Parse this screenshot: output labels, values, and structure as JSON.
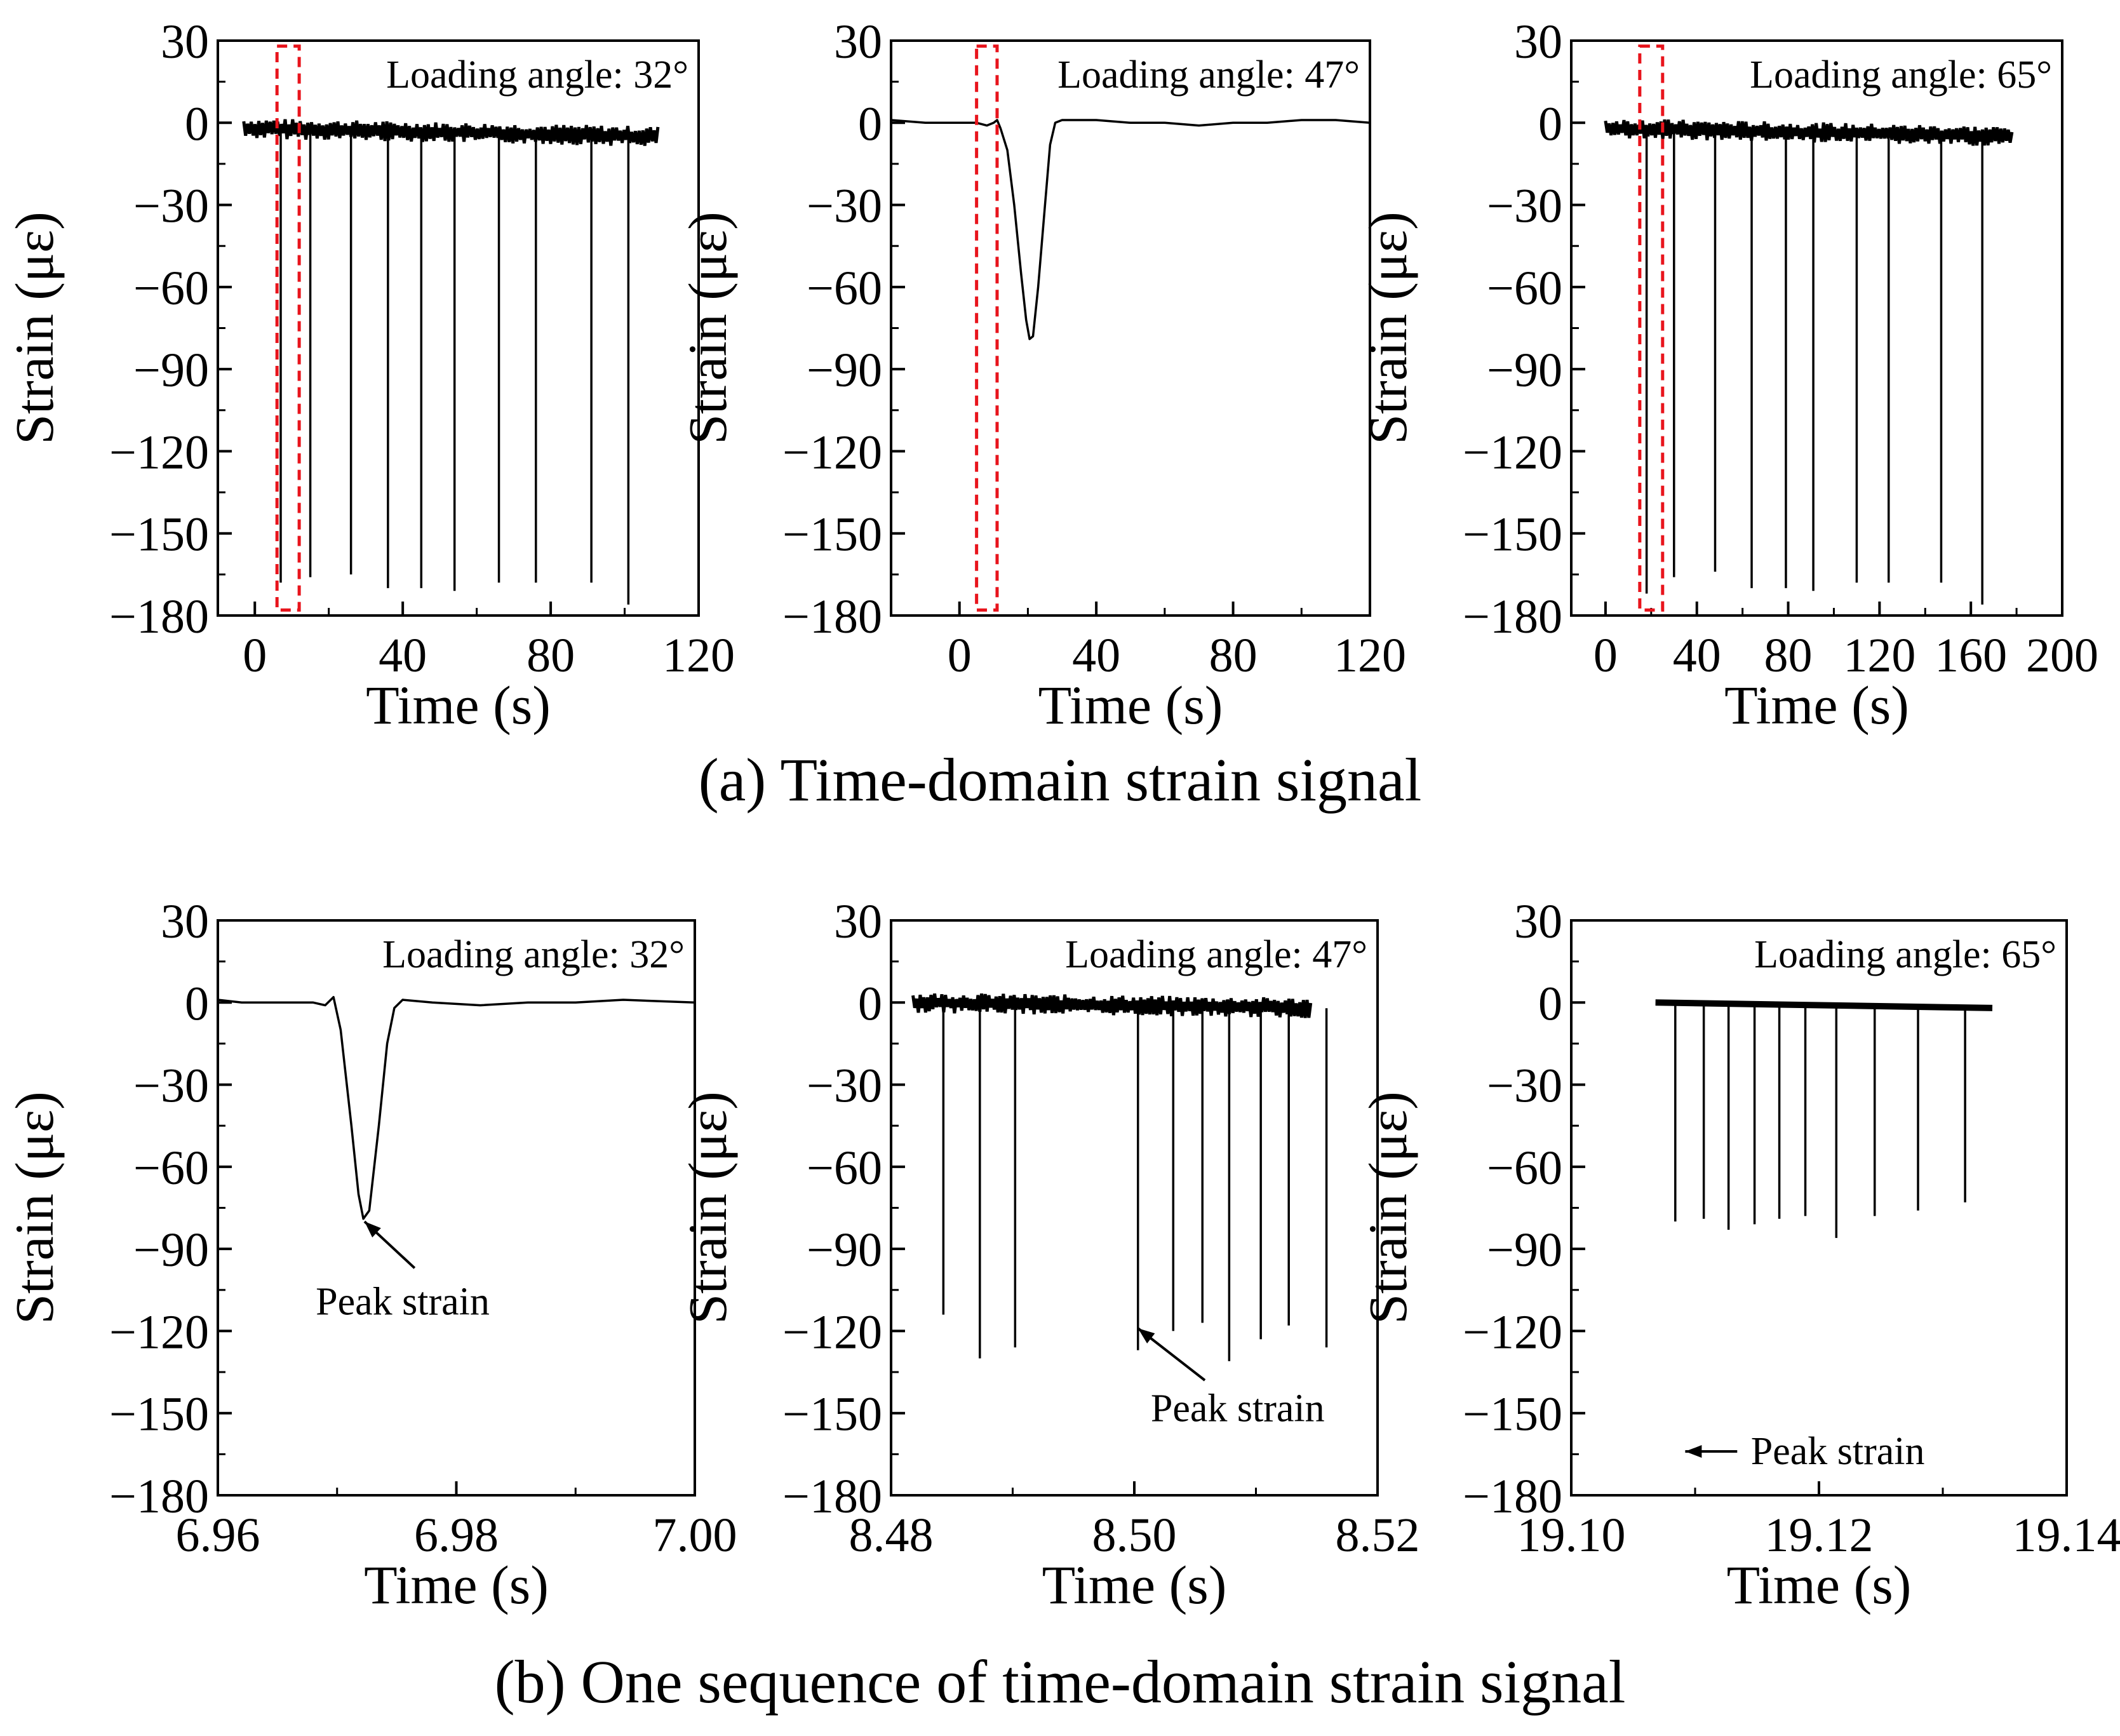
{
  "figure": {
    "caption_a": "(a) Time-domain strain signal",
    "caption_b": "(b) One sequence of time-domain strain signal"
  },
  "colors": {
    "ink": "#000000",
    "highlight": "#e8141c",
    "background": "#ffffff"
  },
  "chart_data": [
    {
      "id": "a1",
      "type": "line",
      "annotation": "Loading angle: 32°",
      "xlabel": "Time (s)",
      "ylabel": "Strain (με)",
      "xlim": [
        -10,
        120
      ],
      "ylim": [
        -180,
        30
      ],
      "xticks": [
        0,
        40,
        80,
        120
      ],
      "xtick_labels": [
        "0",
        "40",
        "80",
        "120"
      ],
      "yticks": [
        30,
        0,
        -30,
        -60,
        -90,
        -120,
        -150,
        -180
      ],
      "ytick_labels": [
        "30",
        "0",
        "−30",
        "−60",
        "−90",
        "−120",
        "−150",
        "−180"
      ],
      "style": "noisy-baseline-spikes",
      "baseline": {
        "x_start": -3,
        "x_end": 109,
        "y_start": -2,
        "y_end": -5
      },
      "spikes": [
        {
          "x": 7,
          "y": -168
        },
        {
          "x": 15,
          "y": -166
        },
        {
          "x": 26,
          "y": -165
        },
        {
          "x": 36,
          "y": -170
        },
        {
          "x": 45,
          "y": -170
        },
        {
          "x": 54,
          "y": -171
        },
        {
          "x": 66,
          "y": -168
        },
        {
          "x": 76,
          "y": -168
        },
        {
          "x": 91,
          "y": -168
        },
        {
          "x": 101,
          "y": -176
        }
      ],
      "highlight_box": {
        "x": [
          6,
          12
        ],
        "y": [
          -178,
          28
        ]
      }
    },
    {
      "id": "a2",
      "type": "line",
      "annotation": "Loading angle: 47°",
      "xlabel": "Time (s)",
      "ylabel": "Strain (με)",
      "xlim": [
        -20,
        120
      ],
      "ylim": [
        -180,
        30
      ],
      "xticks": [
        0,
        40,
        80,
        120
      ],
      "xtick_labels": [
        "0",
        "40",
        "80",
        "120"
      ],
      "yticks": [
        30,
        0,
        -30,
        -60,
        -90,
        -120,
        -150,
        -180
      ],
      "ytick_labels": [
        "30",
        "0",
        "−30",
        "−60",
        "−90",
        "−120",
        "−150",
        "−180"
      ],
      "style": "line",
      "series": [
        {
          "name": "strain",
          "points": [
            [
              -20,
              1
            ],
            [
              -10,
              0
            ],
            [
              0,
              0
            ],
            [
              5,
              0
            ],
            [
              8,
              -1
            ],
            [
              10,
              0
            ],
            [
              11,
              1
            ],
            [
              12,
              -2
            ],
            [
              14,
              -10
            ],
            [
              16,
              -30
            ],
            [
              18,
              -55
            ],
            [
              19.5,
              -72
            ],
            [
              20.5,
              -79
            ],
            [
              21.5,
              -78
            ],
            [
              23,
              -60
            ],
            [
              25,
              -30
            ],
            [
              26.5,
              -8
            ],
            [
              28,
              0
            ],
            [
              30,
              1
            ],
            [
              40,
              1
            ],
            [
              50,
              0
            ],
            [
              60,
              0
            ],
            [
              70,
              -1
            ],
            [
              80,
              0
            ],
            [
              90,
              0
            ],
            [
              100,
              1
            ],
            [
              110,
              1
            ],
            [
              120,
              0
            ]
          ]
        }
      ],
      "highlight_box": {
        "x": [
          5,
          11
        ],
        "y": [
          -178,
          28
        ]
      }
    },
    {
      "id": "a3",
      "type": "line",
      "annotation": "Loading angle: 65°",
      "xlabel": "Time (s)",
      "ylabel": "Strain (με)",
      "xlim": [
        -15,
        200
      ],
      "ylim": [
        -180,
        30
      ],
      "xticks": [
        0,
        40,
        80,
        120,
        160,
        200
      ],
      "xtick_labels": [
        "0",
        "40",
        "80",
        "120",
        "160",
        "200"
      ],
      "yticks": [
        30,
        0,
        -30,
        -60,
        -90,
        -120,
        -150,
        -180
      ],
      "ytick_labels": [
        "30",
        "0",
        "−30",
        "−60",
        "−90",
        "−120",
        "−150",
        "−180"
      ],
      "style": "noisy-baseline-spikes",
      "baseline": {
        "x_start": 0,
        "x_end": 178,
        "y_start": -2,
        "y_end": -5
      },
      "spikes": [
        {
          "x": 18,
          "y": -172
        },
        {
          "x": 30,
          "y": -166
        },
        {
          "x": 48,
          "y": -164
        },
        {
          "x": 64,
          "y": -170
        },
        {
          "x": 79,
          "y": -170
        },
        {
          "x": 91,
          "y": -171
        },
        {
          "x": 110,
          "y": -168
        },
        {
          "x": 124,
          "y": -168
        },
        {
          "x": 147,
          "y": -168
        },
        {
          "x": 165,
          "y": -176
        }
      ],
      "highlight_box": {
        "x": [
          15,
          25
        ],
        "y": [
          -178,
          28
        ]
      }
    },
    {
      "id": "b1",
      "type": "line",
      "annotation": "Loading angle: 32°",
      "xlabel": "Time (s)",
      "ylabel": "Strain (με)",
      "xlim": [
        6.96,
        7.0
      ],
      "ylim": [
        -180,
        30
      ],
      "xticks": [
        6.96,
        6.98,
        7.0
      ],
      "xtick_labels": [
        "6.96",
        "6.98",
        "7.00"
      ],
      "yticks": [
        30,
        0,
        -30,
        -60,
        -90,
        -120,
        -150,
        -180
      ],
      "ytick_labels": [
        "30",
        "0",
        "−30",
        "−60",
        "−90",
        "−120",
        "−150",
        "−180"
      ],
      "style": "line",
      "series": [
        {
          "name": "strain",
          "points": [
            [
              6.96,
              1
            ],
            [
              6.962,
              0
            ],
            [
              6.964,
              0
            ],
            [
              6.966,
              0
            ],
            [
              6.968,
              0
            ],
            [
              6.969,
              -1
            ],
            [
              6.9697,
              2
            ],
            [
              6.9703,
              -10
            ],
            [
              6.9712,
              -45
            ],
            [
              6.9718,
              -70
            ],
            [
              6.9722,
              -79
            ],
            [
              6.9727,
              -76
            ],
            [
              6.9735,
              -45
            ],
            [
              6.9742,
              -15
            ],
            [
              6.9748,
              -2
            ],
            [
              6.9755,
              1
            ],
            [
              6.978,
              0
            ],
            [
              6.982,
              -1
            ],
            [
              6.986,
              0
            ],
            [
              6.99,
              0
            ],
            [
              6.994,
              1
            ],
            [
              7.0,
              0
            ]
          ]
        }
      ],
      "peak_annotation": {
        "text": "Peak strain",
        "arrow_from": [
          6.9765,
          -97
        ],
        "arrow_to": [
          6.9723,
          -80
        ],
        "label_at": [
          6.9755,
          -114
        ]
      }
    },
    {
      "id": "b2",
      "type": "line",
      "annotation": "Loading angle: 47°",
      "xlabel": "Time (s)",
      "ylabel": "Strain (με)",
      "xlim": [
        8.48,
        8.52
      ],
      "ylim": [
        -180,
        30
      ],
      "xticks": [
        8.48,
        8.5,
        8.52
      ],
      "xtick_labels": [
        "8.48",
        "8.50",
        "8.52"
      ],
      "yticks": [
        30,
        0,
        -30,
        -60,
        -90,
        -120,
        -150,
        -180
      ],
      "ytick_labels": [
        "30",
        "0",
        "−30",
        "−60",
        "−90",
        "−120",
        "−150",
        "−180"
      ],
      "style": "noisy-baseline-spikes",
      "baseline": {
        "x_start": 8.4818,
        "x_end": 8.5145,
        "y_start": 0,
        "y_end": -2
      },
      "spikes": [
        {
          "x": 8.4843,
          "y": -114
        },
        {
          "x": 8.4873,
          "y": -130
        },
        {
          "x": 8.4902,
          "y": -126
        },
        {
          "x": 8.5003,
          "y": -127
        },
        {
          "x": 8.5032,
          "y": -120
        },
        {
          "x": 8.5056,
          "y": -117
        },
        {
          "x": 8.5078,
          "y": -131
        },
        {
          "x": 8.5104,
          "y": -123
        },
        {
          "x": 8.5127,
          "y": -118
        },
        {
          "x": 8.5158,
          "y": -126
        }
      ],
      "peak_annotation": {
        "text": "Peak strain",
        "arrow_from": [
          8.5058,
          -138
        ],
        "arrow_to": [
          8.5003,
          -119
        ],
        "label_at": [
          8.5085,
          -153
        ]
      }
    },
    {
      "id": "b3",
      "type": "line",
      "annotation": "Loading angle: 65°",
      "xlabel": "Time (s)",
      "ylabel": "Strain (με)",
      "xlim": [
        19.1,
        19.14
      ],
      "ylim": [
        -180,
        30
      ],
      "xticks": [
        19.1,
        19.12,
        19.14
      ],
      "xtick_labels": [
        "19.10",
        "19.12",
        "19.14"
      ],
      "yticks": [
        30,
        0,
        -30,
        -60,
        -90,
        -120,
        -150,
        -180
      ],
      "ytick_labels": [
        "30",
        "0",
        "−30",
        "−60",
        "−90",
        "−120",
        "−150",
        "−180"
      ],
      "style": "smooth-baseline-spikes",
      "baseline": {
        "x_start": 19.1068,
        "x_end": 19.134,
        "y_start": 0,
        "y_end": -2
      },
      "spikes": [
        {
          "x": 19.1084,
          "y": -80
        },
        {
          "x": 19.1107,
          "y": -79
        },
        {
          "x": 19.1127,
          "y": -83
        },
        {
          "x": 19.1148,
          "y": -81
        },
        {
          "x": 19.1168,
          "y": -79
        },
        {
          "x": 19.1189,
          "y": -78
        },
        {
          "x": 19.1214,
          "y": -86
        },
        {
          "x": 19.1245,
          "y": -78
        },
        {
          "x": 19.128,
          "y": -76
        },
        {
          "x": 19.1318,
          "y": -73
        }
      ],
      "peak_annotation": {
        "text": "Peak strain",
        "arrow_from": [
          19.1134,
          -164
        ],
        "arrow_to": [
          19.1092,
          -164
        ],
        "label_at": [
          19.1145,
          -164
        ]
      }
    }
  ]
}
